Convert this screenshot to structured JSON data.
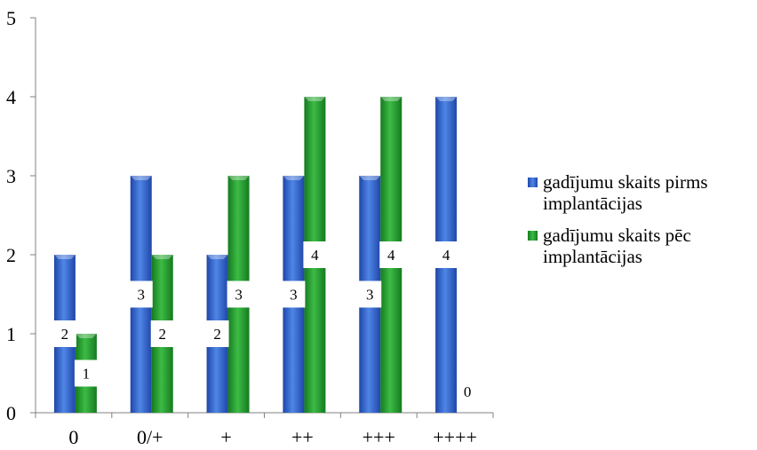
{
  "chart_data": {
    "type": "bar",
    "categories": [
      "0",
      "0/+",
      "+",
      "++",
      "+++",
      "++++"
    ],
    "series": [
      {
        "name": "gadījumu skaits pirms implantācijas",
        "values": [
          2,
          3,
          2,
          3,
          3,
          4
        ],
        "labels": [
          "2",
          "3",
          "2",
          "3",
          "3",
          "4"
        ],
        "color": "#2E5FC8"
      },
      {
        "name": "gadījumu skaits pēc implantācijas",
        "values": [
          1,
          2,
          3,
          4,
          4,
          0
        ],
        "labels": [
          "1",
          "2",
          "3",
          "4",
          "4",
          "0"
        ],
        "color": "#1E9A2E"
      }
    ],
    "ylim": [
      0,
      5
    ],
    "yticks": [
      "0",
      "1",
      "2",
      "3",
      "4",
      "5"
    ],
    "grid": false,
    "legend_position": "right"
  }
}
